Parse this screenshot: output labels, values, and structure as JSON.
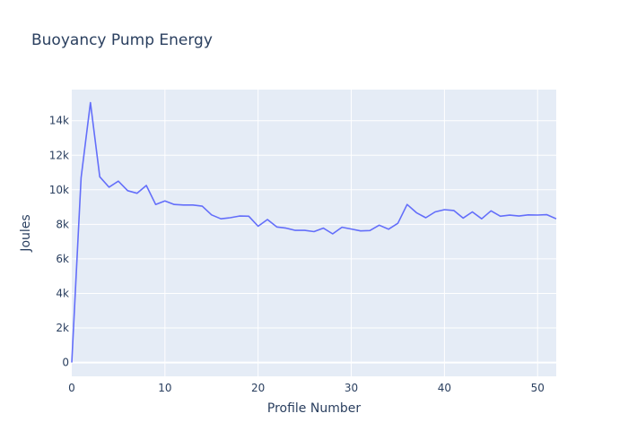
{
  "chart_data": {
    "type": "line",
    "title": "Buoyancy Pump Energy",
    "xlabel": "Profile Number",
    "ylabel": "Joules",
    "xlim": [
      0,
      52
    ],
    "ylim": [
      -800,
      15800
    ],
    "grid": true,
    "x_ticks": [
      0,
      10,
      20,
      30,
      40,
      50
    ],
    "y_ticks": [
      0,
      2000,
      4000,
      6000,
      8000,
      10000,
      12000,
      14000
    ],
    "y_tick_labels": [
      "0",
      "2k",
      "4k",
      "6k",
      "8k",
      "10k",
      "12k",
      "14k"
    ],
    "line_color": "#636efa",
    "series": [
      {
        "x": [
          0,
          1,
          2,
          3,
          4,
          5,
          6,
          7,
          8,
          9,
          10,
          11,
          12,
          13,
          14,
          15,
          16,
          17,
          18,
          19,
          20,
          21,
          22,
          23,
          24,
          25,
          26,
          27,
          28,
          29,
          30,
          31,
          32,
          33,
          34,
          35,
          36,
          37,
          38,
          39,
          40,
          41,
          42,
          43,
          44,
          45,
          46,
          47,
          48,
          49,
          50,
          51,
          52
        ],
        "values": [
          0,
          10700,
          15050,
          10750,
          10150,
          10500,
          9950,
          9800,
          10250,
          9150,
          9350,
          9150,
          9120,
          9120,
          9050,
          8550,
          8320,
          8380,
          8480,
          8470,
          7890,
          8280,
          7850,
          7780,
          7650,
          7650,
          7580,
          7780,
          7450,
          7830,
          7730,
          7620,
          7640,
          7950,
          7720,
          8060,
          9150,
          8670,
          8380,
          8720,
          8850,
          8800,
          8360,
          8720,
          8320,
          8780,
          8470,
          8530,
          8480,
          8550,
          8540,
          8560,
          8320
        ]
      }
    ]
  }
}
